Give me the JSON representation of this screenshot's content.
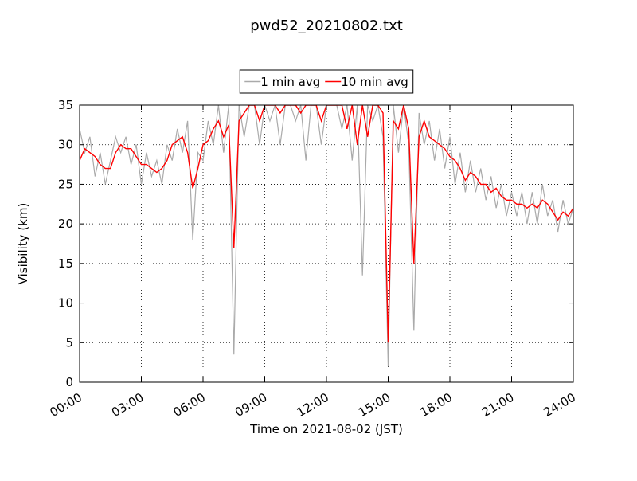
{
  "chart_data": {
    "type": "line",
    "title": "pwd52_20210802.txt",
    "xlabel": "Time on 2021-08-02 (JST)",
    "ylabel": "Visibility (km)",
    "x": [
      0,
      0.25,
      0.5,
      0.75,
      1,
      1.25,
      1.5,
      1.75,
      2,
      2.25,
      2.5,
      2.75,
      3,
      3.25,
      3.5,
      3.75,
      4,
      4.25,
      4.5,
      4.75,
      5,
      5.25,
      5.5,
      5.75,
      6,
      6.25,
      6.5,
      6.75,
      7,
      7.25,
      7.5,
      7.75,
      8,
      8.25,
      8.5,
      8.75,
      9,
      9.25,
      9.5,
      9.75,
      10,
      10.25,
      10.5,
      10.75,
      11,
      11.25,
      11.5,
      11.75,
      12,
      12.25,
      12.5,
      12.75,
      13,
      13.25,
      13.5,
      13.75,
      14,
      14.25,
      14.5,
      14.75,
      15,
      15.25,
      15.5,
      15.75,
      16,
      16.25,
      16.5,
      16.75,
      17,
      17.25,
      17.5,
      17.75,
      18,
      18.25,
      18.5,
      18.75,
      19,
      19.25,
      19.5,
      19.75,
      20,
      20.25,
      20.5,
      20.75,
      21,
      21.25,
      21.5,
      21.75,
      22,
      22.25,
      22.5,
      22.75,
      23,
      23.25,
      23.5,
      23.75,
      24
    ],
    "series": [
      {
        "name": "1 min avg",
        "color": "#aaaaaa",
        "values": [
          32,
          29,
          31,
          26,
          29,
          25,
          28,
          31,
          29,
          31,
          27.5,
          30,
          25,
          29,
          26,
          28,
          25,
          30,
          28,
          32,
          29,
          33,
          18,
          29,
          28,
          33,
          30,
          35,
          29,
          35,
          3.5,
          35,
          31,
          35,
          35,
          30,
          35,
          33,
          35,
          30,
          35,
          35,
          33,
          35,
          28,
          35,
          35,
          30,
          35,
          35,
          35,
          32,
          35,
          28,
          35,
          13.5,
          35,
          33,
          35,
          31,
          2,
          35,
          29,
          35,
          30,
          6.5,
          34,
          30,
          33,
          28,
          32,
          27,
          31,
          25,
          29,
          24,
          28,
          24,
          27,
          23,
          26,
          22,
          25,
          21,
          24,
          21,
          24,
          20,
          24,
          20,
          25,
          21,
          23,
          19,
          23,
          20,
          22
        ]
      },
      {
        "name": "10 min avg",
        "color": "#ff0000",
        "values": [
          28,
          29.5,
          29,
          28.5,
          27.5,
          27,
          27,
          29,
          30,
          29.5,
          29.5,
          28.5,
          27.5,
          27.5,
          27,
          26.5,
          27,
          28,
          30,
          30.5,
          31,
          29,
          24.5,
          27,
          30,
          30.5,
          32,
          33,
          31,
          32.5,
          17,
          33,
          34,
          35,
          35,
          33,
          35,
          35,
          35,
          34,
          35,
          35,
          35,
          34,
          35,
          35,
          35,
          33,
          35,
          35,
          35,
          35,
          32,
          35,
          30,
          35,
          31,
          35,
          35,
          34,
          5,
          33,
          32,
          35,
          32,
          15,
          31,
          33,
          31,
          30.5,
          30,
          29.5,
          28.5,
          28,
          27,
          25.5,
          26.5,
          26,
          25,
          25,
          24,
          24.5,
          23.5,
          23,
          23,
          22.5,
          22.5,
          22,
          22.5,
          22,
          23,
          22.5,
          21.5,
          20.5,
          21.5,
          21,
          22
        ]
      }
    ],
    "xlim": [
      0,
      24
    ],
    "xticks": [
      {
        "value": 0,
        "label": "00:00"
      },
      {
        "value": 3,
        "label": "03:00"
      },
      {
        "value": 6,
        "label": "06:00"
      },
      {
        "value": 9,
        "label": "09:00"
      },
      {
        "value": 12,
        "label": "12:00"
      },
      {
        "value": 15,
        "label": "15:00"
      },
      {
        "value": 18,
        "label": "18:00"
      },
      {
        "value": 21,
        "label": "21:00"
      },
      {
        "value": 24,
        "label": "24:00"
      }
    ],
    "ylim": [
      0,
      35
    ],
    "yticks": [
      0,
      5,
      10,
      15,
      20,
      25,
      30,
      35
    ],
    "grid": true,
    "legend": "top"
  }
}
